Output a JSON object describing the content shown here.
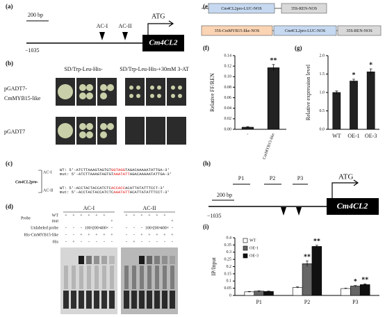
{
  "panels": {
    "a": {
      "label": "(a)",
      "scale": "200 bp",
      "atg": "ATG",
      "sites": [
        "AC-I",
        "AC-II"
      ],
      "start": "−1035",
      "gene": "Cm4CL2"
    },
    "b": {
      "label": "(b)",
      "conditions": [
        "SD/Trp-Leu-His-",
        "SD/Trp-Leu-His-+30mM 3-AT"
      ],
      "rows": [
        [
          "pGADT7-",
          "CmMYB15-like"
        ],
        [
          "pGADT7"
        ]
      ]
    },
    "c": {
      "label": "(c)",
      "promoter": "Cm4CL2pro",
      "sites": [
        {
          "name": "AC-I",
          "wt": [
            "WT: 5'-ATCTTAAAGTAGTGT",
            "GGTAGG",
            "TAGACAAAAATATTGA-3'"
          ],
          "mut": [
            "mut: 5'-ATCTTAAAGTAGTGT",
            "AAATATT",
            "AGACAAAAATATTGA-3'"
          ]
        },
        {
          "name": "AC-II",
          "wt": [
            "WT: 5'-ACCTACTACCATCTC",
            "ACCACC",
            "ACATTATATTTCCT-3'"
          ],
          "mut": [
            "mut: 5'-ACCTACTACCATCTC",
            "AAATATT",
            "ACATTATATTTCCT-3'"
          ]
        }
      ]
    },
    "d": {
      "label": "(d)",
      "probe": "Probe",
      "rows": [
        "WT",
        "mut",
        "Unlabeled probe",
        "His-CmMYB15-like",
        "His"
      ],
      "groups": [
        {
          "name": "AC-I",
          "marks": [
            [
              "+",
              "+",
              "+",
              "+",
              "+",
              "+",
              null
            ],
            [
              null,
              null,
              null,
              null,
              null,
              null,
              "+"
            ],
            [
              "-",
              "-",
              "-",
              "100×",
              "200×",
              "400×",
              "-"
            ],
            [
              "-",
              "-",
              "+",
              "+",
              "+",
              "+",
              "+"
            ],
            [
              "-",
              "+",
              "-",
              "-",
              "-",
              "-",
              "-"
            ]
          ]
        },
        {
          "name": "AC-II",
          "marks": [
            [
              "+",
              "+",
              "+",
              "+",
              "+",
              "+",
              null
            ],
            [
              null,
              null,
              null,
              null,
              null,
              null,
              "+"
            ],
            [
              "-",
              "-",
              "-",
              "100×",
              "200×",
              "400×",
              "-"
            ],
            [
              "-",
              "-",
              "+",
              "+",
              "+",
              "+",
              "+"
            ],
            [
              "-",
              "+",
              "-",
              "-",
              "-",
              "-",
              "-"
            ]
          ]
        }
      ]
    },
    "e": {
      "label": "(e)",
      "constructs": [
        [
          "Cm4CL2pro-LUC-NOS",
          "35S-REN-NOS"
        ],
        [
          "35S-CmMYB15-like-NOS",
          "Cm4CL2pro-LUC-NOS",
          "35S-REN-NOS"
        ]
      ]
    },
    "h": {
      "label": "(h)",
      "scale": "200 bp",
      "primers": [
        "P1",
        "P2",
        "P3"
      ],
      "atg": "ATG",
      "start": "−1035",
      "gene": "Cm4CL2"
    }
  },
  "chart_data": [
    {
      "panel": "(f)",
      "type": "bar",
      "ylabel": "Relative FF/REN",
      "categories": [
        "-",
        "CmMYB15-like"
      ],
      "values": [
        0.004,
        0.117
      ],
      "errors": [
        0.001,
        0.006
      ],
      "significance": [
        null,
        "**"
      ],
      "color": "#222222",
      "ylim": [
        0,
        0.14
      ],
      "yticks": [
        {
          "value": 0,
          "label": "0.00"
        },
        {
          "value": 0.02,
          "label": "0.02"
        },
        {
          "value": 0.04,
          "label": "0.04"
        },
        {
          "value": 0.06,
          "label": "0.06"
        },
        {
          "value": 0.08,
          "label": "0.08"
        },
        {
          "value": 0.1,
          "label": "0.10"
        },
        {
          "value": 0.12,
          "label": "0.12"
        },
        {
          "value": 0.14,
          "label": "0.14"
        }
      ]
    },
    {
      "panel": "(g)",
      "type": "bar",
      "ylabel": "Relative expression level",
      "categories": [
        "WT",
        "OE-1",
        "OE-3"
      ],
      "values": [
        1.0,
        1.31,
        1.56
      ],
      "errors": [
        0.04,
        0.05,
        0.08
      ],
      "significance": [
        null,
        "*",
        "*"
      ],
      "color": "#222222",
      "ylim": [
        0,
        2
      ],
      "yticks": [
        {
          "value": 0,
          "label": "0.0"
        },
        0.5,
        {
          "value": 1,
          "label": "1.0"
        },
        1.5,
        {
          "value": 2,
          "label": "2.0"
        }
      ]
    },
    {
      "panel": "(i)",
      "type": "bar",
      "ylabel": "IP/Input",
      "categories": [
        "P1",
        "P2",
        "P3"
      ],
      "legend": "upper left",
      "series": [
        {
          "name": "WT",
          "color": "#ffffff",
          "values": [
            0.025,
            0.055,
            0.048
          ],
          "errors": [
            0.002,
            0.004,
            0.003
          ],
          "significance": [
            null,
            null,
            null
          ]
        },
        {
          "name": "OE-1",
          "color": "#666666",
          "values": [
            0.03,
            0.22,
            0.065
          ],
          "errors": [
            0.002,
            0.02,
            0.004
          ],
          "significance": [
            null,
            "**",
            "*"
          ]
        },
        {
          "name": "OE-3",
          "color": "#111111",
          "values": [
            0.028,
            0.34,
            0.075
          ],
          "errors": [
            0.002,
            0.008,
            0.005
          ],
          "significance": [
            null,
            "**",
            "**"
          ]
        }
      ],
      "ylim": [
        0,
        0.4
      ],
      "yticks": [
        0,
        0.05,
        0.1,
        0.15,
        0.2,
        0.25,
        0.3,
        0.35,
        0.4
      ]
    }
  ]
}
